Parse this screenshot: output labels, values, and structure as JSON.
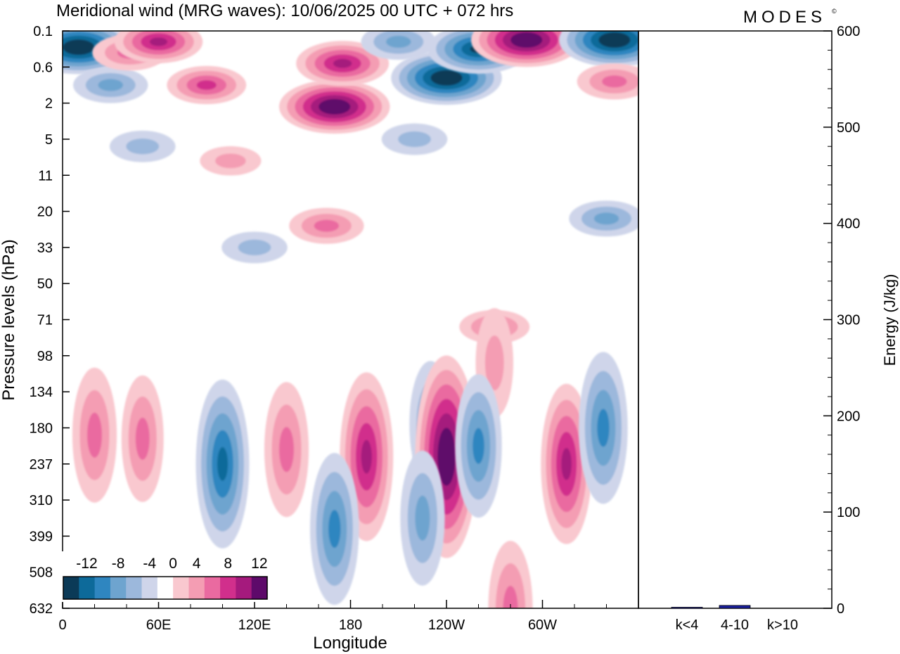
{
  "title": "Meridional wind (MRG waves):  10/06/2025  00 UTC  + 072 hrs",
  "brand": "MODES",
  "brand_mark": "©",
  "chart_data": [
    {
      "type": "heatmap",
      "xlabel": "Longitude",
      "ylabel": "Pressure levels (hPa)",
      "x_ticks": [
        "0",
        "60E",
        "120E",
        "180",
        "120W",
        "60W"
      ],
      "x_tick_values": [
        0,
        60,
        120,
        180,
        240,
        300
      ],
      "xlim": [
        0,
        360
      ],
      "y_ticks": [
        "0.1",
        "0.6",
        "2",
        "5",
        "11",
        "20",
        "33",
        "50",
        "71",
        "98",
        "134",
        "180",
        "237",
        "310",
        "399",
        "508",
        "632"
      ],
      "colorbar": {
        "labels": [
          "-12",
          "-8",
          "-4",
          "0",
          "4",
          "8",
          "12"
        ],
        "levels": [
          -14,
          -12,
          -10,
          -8,
          -6,
          -4,
          -2,
          2,
          4,
          6,
          8,
          10,
          12,
          14
        ],
        "colors": [
          "#0b3a57",
          "#0d6a9a",
          "#2f86c0",
          "#6ea4cf",
          "#9cb8dc",
          "#cfd5ea",
          "#ffffff",
          "#f9c8cf",
          "#f49db3",
          "#ea6aa0",
          "#d12f8c",
          "#a51a7d",
          "#5e0a6a"
        ]
      },
      "cells": [
        {
          "lon": 10,
          "lev": 0.45,
          "v": -14
        },
        {
          "lon": 30,
          "lev": 1.5,
          "v": -6
        },
        {
          "lon": 42,
          "lev": 0.6,
          "v": 6
        },
        {
          "lon": 60,
          "lev": 0.3,
          "v": 9
        },
        {
          "lon": 90,
          "lev": 1.5,
          "v": 7
        },
        {
          "lon": 170,
          "lev": 2.1,
          "v": 14
        },
        {
          "lon": 175,
          "lev": 0.9,
          "v": 10
        },
        {
          "lon": 210,
          "lev": 0.3,
          "v": -6
        },
        {
          "lon": 240,
          "lev": 1.3,
          "v": -14
        },
        {
          "lon": 260,
          "lev": 0.5,
          "v": -12
        },
        {
          "lon": 290,
          "lev": 0.25,
          "v": 14
        },
        {
          "lon": 345,
          "lev": 0.25,
          "v": -14
        },
        {
          "lon": 345,
          "lev": 1.4,
          "v": 6
        },
        {
          "lon": 50,
          "lev": 3.2,
          "v": -4
        },
        {
          "lon": 105,
          "lev": 3.6,
          "v": 3
        },
        {
          "lon": 165,
          "lev": 5.4,
          "v": 6
        },
        {
          "lon": 220,
          "lev": 3.0,
          "v": -4
        },
        {
          "lon": 340,
          "lev": 5.2,
          "v": -6
        },
        {
          "lon": 120,
          "lev": 6.0,
          "v": -4
        },
        {
          "lon": 270,
          "lev": 8.2,
          "v": 5
        },
        {
          "lon": 270,
          "lev": 9.2,
          "v": 3
        },
        {
          "lon": 20,
          "lev": 11.2,
          "v": 6
        },
        {
          "lon": 50,
          "lev": 11.3,
          "v": 5
        },
        {
          "lon": 100,
          "lev": 12.0,
          "v": -10
        },
        {
          "lon": 140,
          "lev": 11.6,
          "v": 6
        },
        {
          "lon": 190,
          "lev": 11.8,
          "v": 10
        },
        {
          "lon": 230,
          "lev": 10.9,
          "v": -5
        },
        {
          "lon": 240,
          "lev": 11.8,
          "v": 14
        },
        {
          "lon": 260,
          "lev": 11.5,
          "v": -7
        },
        {
          "lon": 315,
          "lev": 12.0,
          "v": 9
        },
        {
          "lon": 338,
          "lev": 11.0,
          "v": -8
        },
        {
          "lon": 170,
          "lev": 13.8,
          "v": -8
        },
        {
          "lon": 225,
          "lev": 13.5,
          "v": -6
        },
        {
          "lon": 280,
          "lev": 16.0,
          "v": 6
        }
      ],
      "energy_axis": {
        "ylabel": "Energy (J/kg)",
        "yticks": [
          0,
          100,
          200,
          300,
          400,
          500,
          600
        ],
        "ylim": [
          0,
          600
        ],
        "categories": [
          "k<4",
          "4-10",
          "k>10"
        ],
        "values": [
          1,
          3,
          0
        ],
        "bar_color": "#1a1f9c"
      }
    }
  ]
}
